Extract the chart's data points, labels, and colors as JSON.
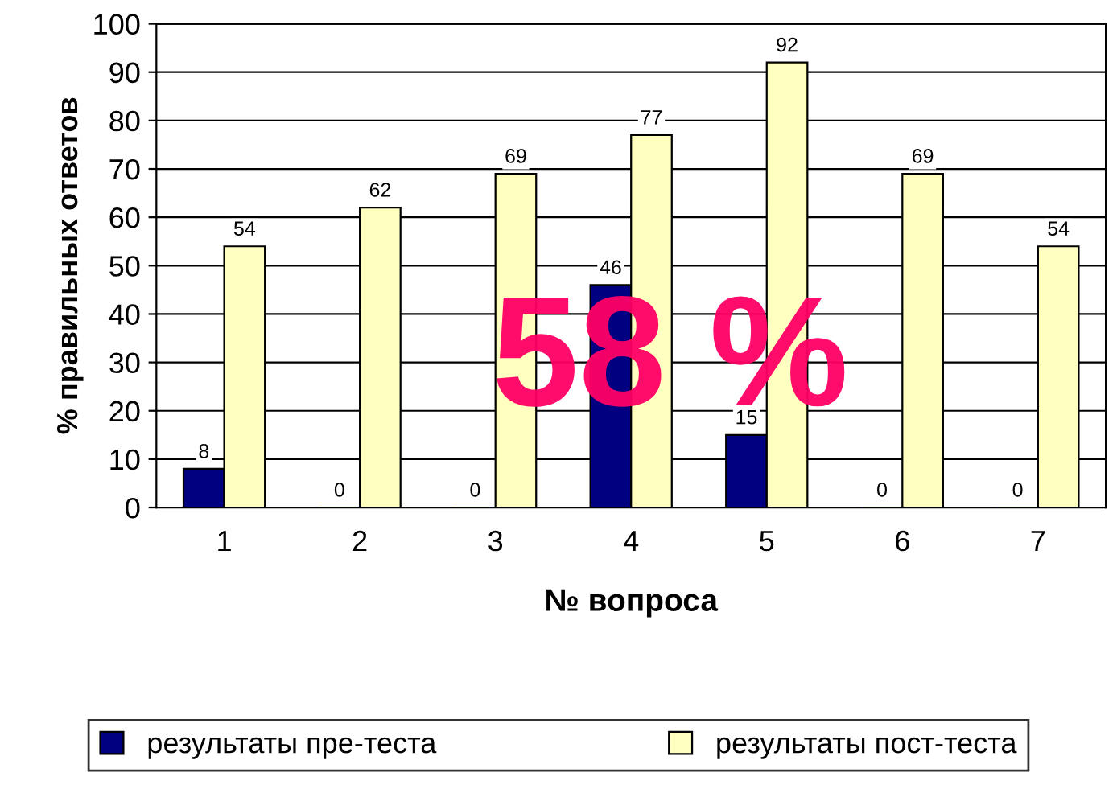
{
  "chart_data": {
    "type": "bar",
    "xlabel": "№ вопроса",
    "ylabel": "% правильных ответов",
    "categories": [
      "1",
      "2",
      "3",
      "4",
      "5",
      "6",
      "7"
    ],
    "series": [
      {
        "name": "результаты пре-теста",
        "color": "#000080",
        "values": [
          8,
          0,
          0,
          46,
          15,
          0,
          0
        ]
      },
      {
        "name": "результаты пост-теста",
        "color": "#ffffc0",
        "values": [
          54,
          62,
          69,
          77,
          92,
          69,
          54
        ]
      }
    ],
    "ylim": [
      0,
      100
    ],
    "yticks": [
      0,
      10,
      20,
      30,
      40,
      50,
      60,
      70,
      80,
      90,
      100
    ],
    "grid": "y",
    "legend": "bottom",
    "data_labels": true,
    "annotations": [
      "58 %"
    ]
  }
}
